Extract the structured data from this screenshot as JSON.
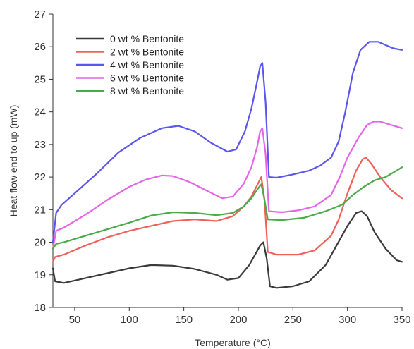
{
  "chart_data": {
    "type": "line",
    "xlabel": "Temperature (°C)",
    "ylabel": "Heat flow end to up (mW)",
    "xlim": [
      30,
      350
    ],
    "ylim": [
      18,
      27
    ],
    "x_ticks": [
      50,
      100,
      150,
      200,
      250,
      300,
      350
    ],
    "y_ticks": [
      18,
      19,
      20,
      21,
      22,
      23,
      24,
      25,
      26,
      27
    ],
    "grid": false,
    "legend_position": "top-left",
    "series": [
      {
        "name": "0 wt % Bentonite",
        "color": "#3a3a3a",
        "points": [
          [
            30,
            19.2
          ],
          [
            32,
            18.8
          ],
          [
            40,
            18.75
          ],
          [
            60,
            18.9
          ],
          [
            80,
            19.05
          ],
          [
            100,
            19.2
          ],
          [
            120,
            19.3
          ],
          [
            140,
            19.28
          ],
          [
            160,
            19.18
          ],
          [
            180,
            19.0
          ],
          [
            190,
            18.85
          ],
          [
            200,
            18.9
          ],
          [
            210,
            19.3
          ],
          [
            215,
            19.6
          ],
          [
            220,
            19.9
          ],
          [
            223,
            20.0
          ],
          [
            226,
            19.5
          ],
          [
            229,
            18.65
          ],
          [
            235,
            18.6
          ],
          [
            250,
            18.65
          ],
          [
            265,
            18.8
          ],
          [
            280,
            19.3
          ],
          [
            290,
            19.9
          ],
          [
            300,
            20.5
          ],
          [
            308,
            20.9
          ],
          [
            313,
            20.95
          ],
          [
            318,
            20.8
          ],
          [
            325,
            20.3
          ],
          [
            335,
            19.8
          ],
          [
            345,
            19.45
          ],
          [
            350,
            19.4
          ]
        ]
      },
      {
        "name": "2 wt % Bentonite",
        "color": "#f0605a",
        "points": [
          [
            30,
            19.4
          ],
          [
            32,
            19.55
          ],
          [
            40,
            19.62
          ],
          [
            60,
            19.9
          ],
          [
            80,
            20.15
          ],
          [
            100,
            20.35
          ],
          [
            120,
            20.5
          ],
          [
            140,
            20.65
          ],
          [
            160,
            20.7
          ],
          [
            180,
            20.65
          ],
          [
            195,
            20.8
          ],
          [
            205,
            21.1
          ],
          [
            212,
            21.4
          ],
          [
            218,
            21.8
          ],
          [
            221,
            22.0
          ],
          [
            224,
            21.3
          ],
          [
            227,
            19.7
          ],
          [
            235,
            19.62
          ],
          [
            255,
            19.62
          ],
          [
            270,
            19.75
          ],
          [
            285,
            20.2
          ],
          [
            292,
            20.7
          ],
          [
            300,
            21.5
          ],
          [
            308,
            22.2
          ],
          [
            314,
            22.55
          ],
          [
            317,
            22.6
          ],
          [
            322,
            22.4
          ],
          [
            330,
            22.0
          ],
          [
            340,
            21.6
          ],
          [
            350,
            21.35
          ]
        ]
      },
      {
        "name": "4 wt % Bentonite",
        "color": "#5a56ee",
        "points": [
          [
            30,
            20.0
          ],
          [
            33,
            20.9
          ],
          [
            38,
            21.15
          ],
          [
            50,
            21.5
          ],
          [
            70,
            22.1
          ],
          [
            90,
            22.75
          ],
          [
            110,
            23.2
          ],
          [
            130,
            23.5
          ],
          [
            145,
            23.57
          ],
          [
            160,
            23.4
          ],
          [
            175,
            23.05
          ],
          [
            190,
            22.78
          ],
          [
            198,
            22.85
          ],
          [
            206,
            23.4
          ],
          [
            212,
            24.1
          ],
          [
            217,
            24.9
          ],
          [
            220,
            25.4
          ],
          [
            222,
            25.5
          ],
          [
            225,
            24.3
          ],
          [
            228,
            22.0
          ],
          [
            235,
            21.98
          ],
          [
            250,
            22.08
          ],
          [
            265,
            22.2
          ],
          [
            275,
            22.35
          ],
          [
            285,
            22.6
          ],
          [
            292,
            23.1
          ],
          [
            298,
            24.0
          ],
          [
            305,
            25.2
          ],
          [
            312,
            25.9
          ],
          [
            320,
            26.15
          ],
          [
            328,
            26.15
          ],
          [
            335,
            26.05
          ],
          [
            342,
            25.95
          ],
          [
            350,
            25.9
          ]
        ]
      },
      {
        "name": "6 wt % Bentonite",
        "color": "#e564e8",
        "points": [
          [
            30,
            19.8
          ],
          [
            33,
            20.35
          ],
          [
            40,
            20.45
          ],
          [
            60,
            20.85
          ],
          [
            80,
            21.3
          ],
          [
            100,
            21.7
          ],
          [
            115,
            21.92
          ],
          [
            130,
            22.05
          ],
          [
            140,
            22.03
          ],
          [
            155,
            21.85
          ],
          [
            170,
            21.6
          ],
          [
            185,
            21.35
          ],
          [
            195,
            21.4
          ],
          [
            205,
            21.8
          ],
          [
            212,
            22.3
          ],
          [
            217,
            22.9
          ],
          [
            220,
            23.4
          ],
          [
            222,
            23.5
          ],
          [
            225,
            22.7
          ],
          [
            228,
            20.95
          ],
          [
            240,
            20.92
          ],
          [
            255,
            20.98
          ],
          [
            270,
            21.1
          ],
          [
            285,
            21.45
          ],
          [
            293,
            22.0
          ],
          [
            300,
            22.6
          ],
          [
            310,
            23.2
          ],
          [
            318,
            23.6
          ],
          [
            324,
            23.7
          ],
          [
            330,
            23.7
          ],
          [
            340,
            23.6
          ],
          [
            350,
            23.5
          ]
        ]
      },
      {
        "name": "8 wt % Bentonite",
        "color": "#4caa4c",
        "points": [
          [
            30,
            19.8
          ],
          [
            33,
            19.95
          ],
          [
            40,
            20.0
          ],
          [
            60,
            20.2
          ],
          [
            80,
            20.4
          ],
          [
            100,
            20.6
          ],
          [
            120,
            20.82
          ],
          [
            140,
            20.92
          ],
          [
            160,
            20.9
          ],
          [
            180,
            20.83
          ],
          [
            195,
            20.9
          ],
          [
            205,
            21.1
          ],
          [
            212,
            21.35
          ],
          [
            218,
            21.65
          ],
          [
            221,
            21.78
          ],
          [
            224,
            21.3
          ],
          [
            227,
            20.7
          ],
          [
            240,
            20.68
          ],
          [
            260,
            20.75
          ],
          [
            280,
            20.95
          ],
          [
            295,
            21.15
          ],
          [
            305,
            21.45
          ],
          [
            315,
            21.7
          ],
          [
            325,
            21.9
          ],
          [
            335,
            22.0
          ],
          [
            345,
            22.2
          ],
          [
            350,
            22.3
          ]
        ]
      }
    ]
  }
}
